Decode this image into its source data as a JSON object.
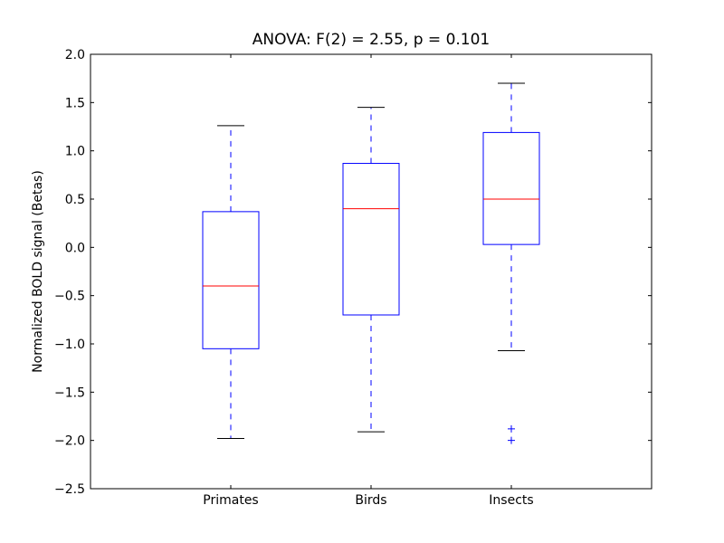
{
  "chart_data": {
    "type": "boxplot",
    "title": "ANOVA: F(2) = 2.55, p = 0.101",
    "xlabel": "",
    "ylabel": "Normalized BOLD signal (Betas)",
    "ylim": [
      -2.5,
      2.0
    ],
    "yticks": [
      "2.0",
      "1.5",
      "1.0",
      "0.5",
      "0.0",
      "−0.5",
      "−1.0",
      "−1.5",
      "−2.0",
      "−2.5"
    ],
    "ytick_values": [
      2.0,
      1.5,
      1.0,
      0.5,
      0.0,
      -0.5,
      -1.0,
      -1.5,
      -2.0,
      -2.5
    ],
    "categories": [
      "Primates",
      "Birds",
      "Insects"
    ],
    "boxes": [
      {
        "whisker_high": 1.26,
        "q3": 0.37,
        "median": -0.4,
        "q1": -1.05,
        "whisker_low": -1.98,
        "outliers": []
      },
      {
        "whisker_high": 1.45,
        "q3": 0.87,
        "median": 0.4,
        "q1": -0.7,
        "whisker_low": -1.91,
        "outliers": []
      },
      {
        "whisker_high": 1.7,
        "q3": 1.19,
        "median": 0.5,
        "q1": 0.03,
        "whisker_low": -1.07,
        "outliers": [
          -1.88,
          -2.0
        ]
      }
    ],
    "grid": false,
    "colors": {
      "box": "#0000ff",
      "median": "#ff0000",
      "cap": "#000000"
    }
  }
}
